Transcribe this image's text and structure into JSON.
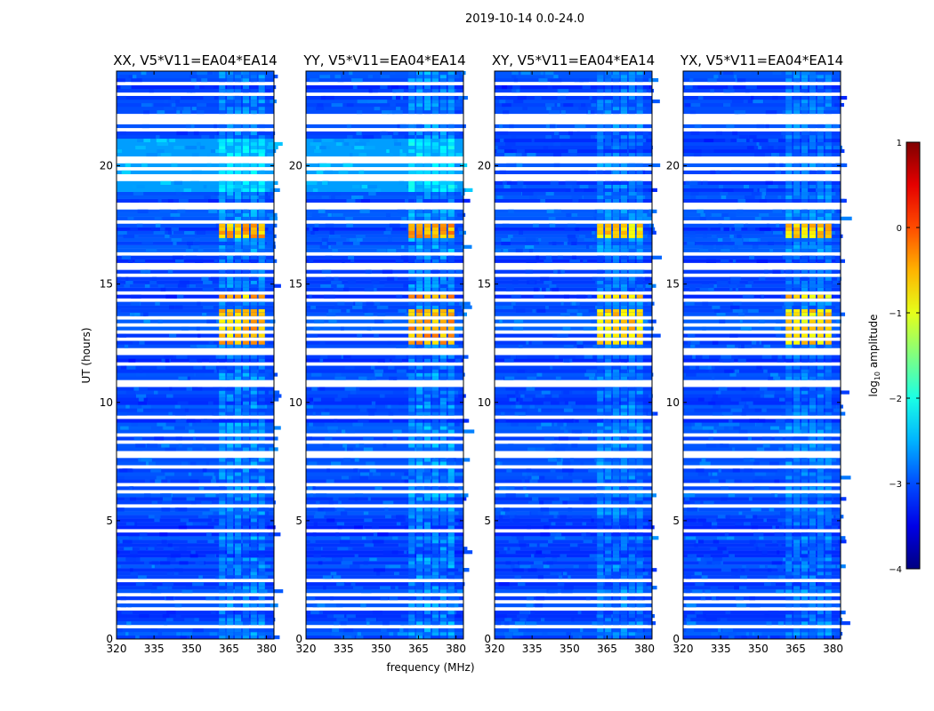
{
  "figure": {
    "suptitle": "2019-10-14 0.0-24.0",
    "xlabel": "frequency (MHz)",
    "ylabel": "UT (hours)"
  },
  "chart_data": {
    "type": "heatmap",
    "colormap": "jet",
    "x_ticks": [
      320,
      335,
      350,
      365,
      380
    ],
    "y_ticks": [
      0,
      5,
      10,
      15,
      20
    ],
    "xlim": [
      320,
      383
    ],
    "ylim": [
      0,
      24
    ],
    "panels": [
      {
        "title": "XX, V5*V11=EA04*EA14",
        "rfi_level": 0.9,
        "cross": false
      },
      {
        "title": "YY, V5*V11=EA04*EA14",
        "rfi_level": 1.0,
        "cross": false
      },
      {
        "title": "XY, V5*V11=EA04*EA14",
        "rfi_level": 0.75,
        "cross": true
      },
      {
        "title": "YX, V5*V11=EA04*EA14",
        "rfi_level": 0.75,
        "cross": true
      }
    ],
    "rfi_band_mhz": [
      361,
      380
    ],
    "strong_rfi_hours": [
      [
        12.4,
        13.9
      ],
      [
        14.2,
        14.6
      ],
      [
        16.9,
        17.7
      ]
    ],
    "colorbar": {
      "label": "log10 amplitude",
      "label_main": "log",
      "label_sub": "10",
      "label_rest": " amplitude",
      "range": [
        -4,
        1
      ],
      "ticks": [
        1,
        0,
        -1,
        -2,
        -3,
        -4
      ]
    },
    "colors": {
      "jet_stops": [
        "#000080",
        "#0000ff",
        "#00ffff",
        "#ffff00",
        "#ff0000",
        "#800000"
      ]
    }
  }
}
